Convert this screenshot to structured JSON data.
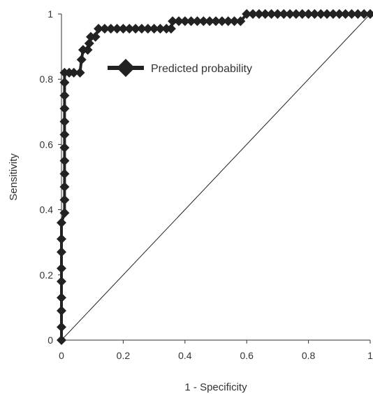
{
  "chart_data": {
    "type": "line",
    "xlabel": "1 - Specificity",
    "ylabel": "Sensitivity",
    "xlim": [
      0,
      1
    ],
    "ylim": [
      0,
      1
    ],
    "x_ticks": [
      "0",
      "0.2",
      "0.4",
      "0.6",
      "0.8",
      "1"
    ],
    "y_ticks": [
      "0",
      "0.2",
      "0.4",
      "0.6",
      "0.8",
      "1"
    ],
    "grid": false,
    "legend_position": "top-center",
    "series": [
      {
        "name": "Predicted probability",
        "marker": "diamond",
        "color": "#222222",
        "points": [
          [
            0.0,
            0.0
          ],
          [
            0.0,
            0.04
          ],
          [
            0.0,
            0.09
          ],
          [
            0.0,
            0.13
          ],
          [
            0.0,
            0.18
          ],
          [
            0.0,
            0.22
          ],
          [
            0.0,
            0.27
          ],
          [
            0.0,
            0.31
          ],
          [
            0.0,
            0.36
          ],
          [
            0.01,
            0.39
          ],
          [
            0.01,
            0.43
          ],
          [
            0.01,
            0.47
          ],
          [
            0.01,
            0.51
          ],
          [
            0.01,
            0.55
          ],
          [
            0.01,
            0.59
          ],
          [
            0.01,
            0.63
          ],
          [
            0.01,
            0.67
          ],
          [
            0.01,
            0.71
          ],
          [
            0.01,
            0.75
          ],
          [
            0.01,
            0.79
          ],
          [
            0.01,
            0.82
          ],
          [
            0.025,
            0.82
          ],
          [
            0.04,
            0.82
          ],
          [
            0.06,
            0.82
          ],
          [
            0.065,
            0.86
          ],
          [
            0.07,
            0.89
          ],
          [
            0.085,
            0.89
          ],
          [
            0.09,
            0.91
          ],
          [
            0.095,
            0.93
          ],
          [
            0.11,
            0.93
          ],
          [
            0.12,
            0.955
          ],
          [
            0.14,
            0.955
          ],
          [
            0.16,
            0.955
          ],
          [
            0.18,
            0.955
          ],
          [
            0.2,
            0.955
          ],
          [
            0.22,
            0.955
          ],
          [
            0.24,
            0.955
          ],
          [
            0.26,
            0.955
          ],
          [
            0.28,
            0.955
          ],
          [
            0.3,
            0.955
          ],
          [
            0.32,
            0.955
          ],
          [
            0.34,
            0.955
          ],
          [
            0.355,
            0.955
          ],
          [
            0.36,
            0.978
          ],
          [
            0.38,
            0.978
          ],
          [
            0.4,
            0.978
          ],
          [
            0.42,
            0.978
          ],
          [
            0.44,
            0.978
          ],
          [
            0.46,
            0.978
          ],
          [
            0.48,
            0.978
          ],
          [
            0.5,
            0.978
          ],
          [
            0.52,
            0.978
          ],
          [
            0.54,
            0.978
          ],
          [
            0.56,
            0.978
          ],
          [
            0.58,
            0.978
          ],
          [
            0.6,
            1.0
          ],
          [
            0.62,
            1.0
          ],
          [
            0.64,
            1.0
          ],
          [
            0.66,
            1.0
          ],
          [
            0.68,
            1.0
          ],
          [
            0.7,
            1.0
          ],
          [
            0.72,
            1.0
          ],
          [
            0.74,
            1.0
          ],
          [
            0.76,
            1.0
          ],
          [
            0.78,
            1.0
          ],
          [
            0.8,
            1.0
          ],
          [
            0.82,
            1.0
          ],
          [
            0.84,
            1.0
          ],
          [
            0.86,
            1.0
          ],
          [
            0.88,
            1.0
          ],
          [
            0.9,
            1.0
          ],
          [
            0.92,
            1.0
          ],
          [
            0.94,
            1.0
          ],
          [
            0.96,
            1.0
          ],
          [
            0.98,
            1.0
          ],
          [
            1.0,
            1.0
          ]
        ]
      }
    ],
    "reference_line": {
      "from": [
        0,
        0
      ],
      "to": [
        1,
        1
      ],
      "color": "#222222"
    }
  }
}
